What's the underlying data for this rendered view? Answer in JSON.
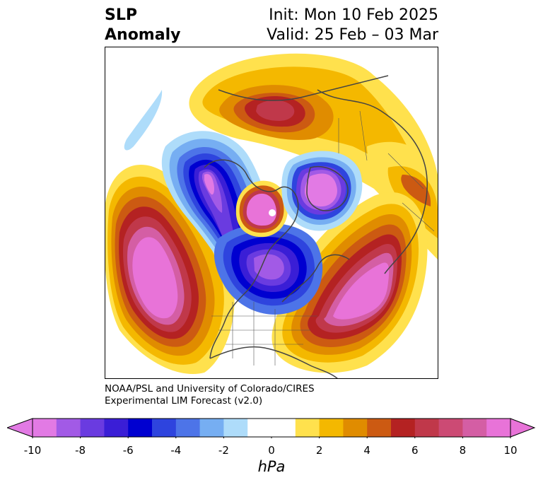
{
  "title": {
    "left_line1": "SLP",
    "left_line2": "Anomaly",
    "right_line1": "Init: Mon 10 Feb 2025",
    "right_line2": "Valid: 25 Feb – 03 Mar"
  },
  "credit": {
    "line1": "NOAA/PSL and University of Colorado/CIRES",
    "line2": "Experimental LIM Forecast (v2.0)"
  },
  "colorbar": {
    "unit": "hPa",
    "ticks": [
      "-10",
      "-8",
      "-6",
      "-4",
      "-2",
      "0",
      "2",
      "4",
      "6",
      "8",
      "10"
    ],
    "colors": [
      "#e27ae4",
      "#a25ae6",
      "#6a3be0",
      "#3a1ed6",
      "#0000d0",
      "#2e44de",
      "#4d74e8",
      "#76aef2",
      "#aedcfa",
      "#ffffff",
      "#ffffff",
      "#ffe14d",
      "#f4b800",
      "#e08c00",
      "#cc5a12",
      "#b42222",
      "#c0384a",
      "#cc4a74",
      "#d45ea4",
      "#e873d8"
    ],
    "neg_extend": "#e27ae4",
    "pos_extend": "#e873d8"
  },
  "map": {
    "anomalies": [
      {
        "name": "north-pacific-high",
        "sign": "positive"
      },
      {
        "name": "eastern-north-america-high",
        "sign": "positive"
      },
      {
        "name": "western-canada-low",
        "sign": "negative"
      },
      {
        "name": "hudson-bay-low",
        "sign": "negative"
      },
      {
        "name": "arctic-low",
        "sign": "negative"
      },
      {
        "name": "siberia-low",
        "sign": "negative"
      },
      {
        "name": "eurasia-high",
        "sign": "positive"
      }
    ]
  }
}
